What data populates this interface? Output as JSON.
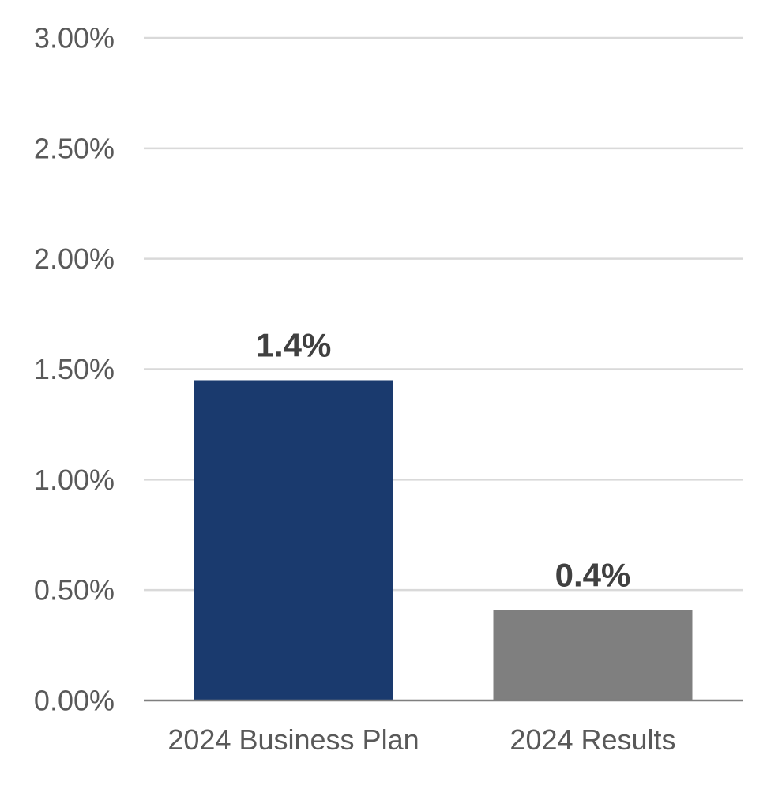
{
  "chart_data": {
    "type": "bar",
    "categories": [
      "2024 Business Plan",
      "2024 Results"
    ],
    "values": [
      1.45,
      0.41
    ],
    "data_labels": [
      "1.4%",
      "0.4%"
    ],
    "bar_colors": [
      "#1a3a6e",
      "#7f7f7f"
    ],
    "title": "",
    "xlabel": "",
    "ylabel": "",
    "ylim": [
      0,
      3.0
    ],
    "yticks": [
      0,
      0.5,
      1.0,
      1.5,
      2.0,
      2.5,
      3.0
    ],
    "ytick_labels": [
      "0.00%",
      "0.50%",
      "1.00%",
      "1.50%",
      "2.00%",
      "2.50%",
      "3.00%"
    ],
    "grid": true,
    "legend": "none"
  }
}
